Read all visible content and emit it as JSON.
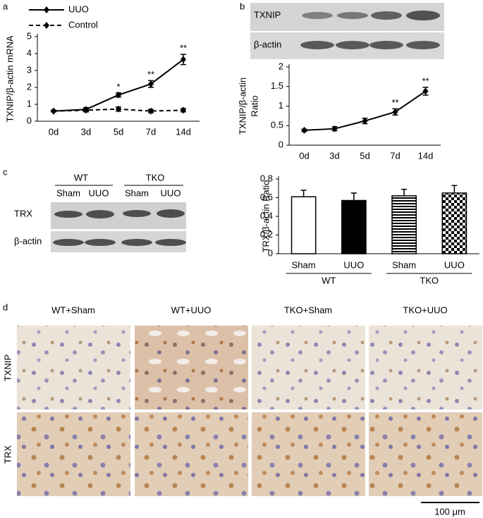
{
  "panel_labels": [
    "a",
    "b",
    "c",
    "d"
  ],
  "chart_data": [
    {
      "type": "line",
      "ylabel": "TXNIP/β-actin mRNA",
      "categories": [
        "0d",
        "3d",
        "5d",
        "7d",
        "14d"
      ],
      "series": [
        {
          "name": "UUO",
          "color": "#000000",
          "dash": "solid",
          "values": [
            0.6,
            0.7,
            1.55,
            2.2,
            3.65
          ],
          "errors": [
            0.05,
            0.1,
            0.12,
            0.2,
            0.3
          ]
        },
        {
          "name": "Control",
          "color": "#000000",
          "dash": "dashed",
          "values": [
            0.6,
            0.65,
            0.72,
            0.6,
            0.65
          ],
          "errors": [
            0.05,
            0.1,
            0.12,
            0.1,
            0.1
          ]
        }
      ],
      "significance": [
        null,
        null,
        "*",
        "**",
        "**"
      ],
      "ylim": [
        0,
        5
      ],
      "yticks": [
        0,
        1,
        2,
        3,
        4,
        5
      ],
      "legend": "upper left"
    },
    {
      "type": "line",
      "ylabel_lines": [
        "TXNIP/β-actin",
        "Ratio"
      ],
      "categories": [
        "0d",
        "3d",
        "5d",
        "7d",
        "14d"
      ],
      "series": [
        {
          "color": "#000000",
          "dash": "solid",
          "values": [
            0.38,
            0.42,
            0.62,
            0.85,
            1.38
          ],
          "errors": [
            0.03,
            0.05,
            0.07,
            0.08,
            0.1
          ]
        }
      ],
      "significance": [
        null,
        null,
        null,
        "**",
        "**"
      ],
      "ylim": [
        0,
        2
      ],
      "yticks": [
        0,
        0.5,
        1,
        1.5,
        2
      ]
    },
    {
      "type": "bar",
      "ylabel": "TRX/β-actin Ratio",
      "categories": [
        "Sham",
        "UUO",
        "Sham",
        "UUO"
      ],
      "groups": [
        "WT",
        "TKO"
      ],
      "values": [
        0.61,
        0.57,
        0.62,
        0.65
      ],
      "errors": [
        0.07,
        0.08,
        0.07,
        0.08
      ],
      "fills": [
        "white",
        "black",
        "stripes",
        "checker"
      ],
      "ylim": [
        0,
        0.8
      ],
      "yticks": [
        0,
        0.2,
        0.4,
        0.6,
        0.8
      ]
    }
  ],
  "blot_b": {
    "bands": [
      "TXNIP",
      "β-actin"
    ]
  },
  "blot_c": {
    "groups": [
      "WT",
      "TKO"
    ],
    "lanes": [
      "Sham",
      "UUO",
      "Sham",
      "UUO"
    ],
    "bands": [
      "TRX",
      "β-actin"
    ]
  },
  "histology": {
    "columns": [
      "WT+Sham",
      "WT+UUO",
      "TKO+Sham",
      "TKO+UUO"
    ],
    "rows": [
      "TXNIP",
      "TRX"
    ],
    "scale_bar": "100 μm"
  }
}
